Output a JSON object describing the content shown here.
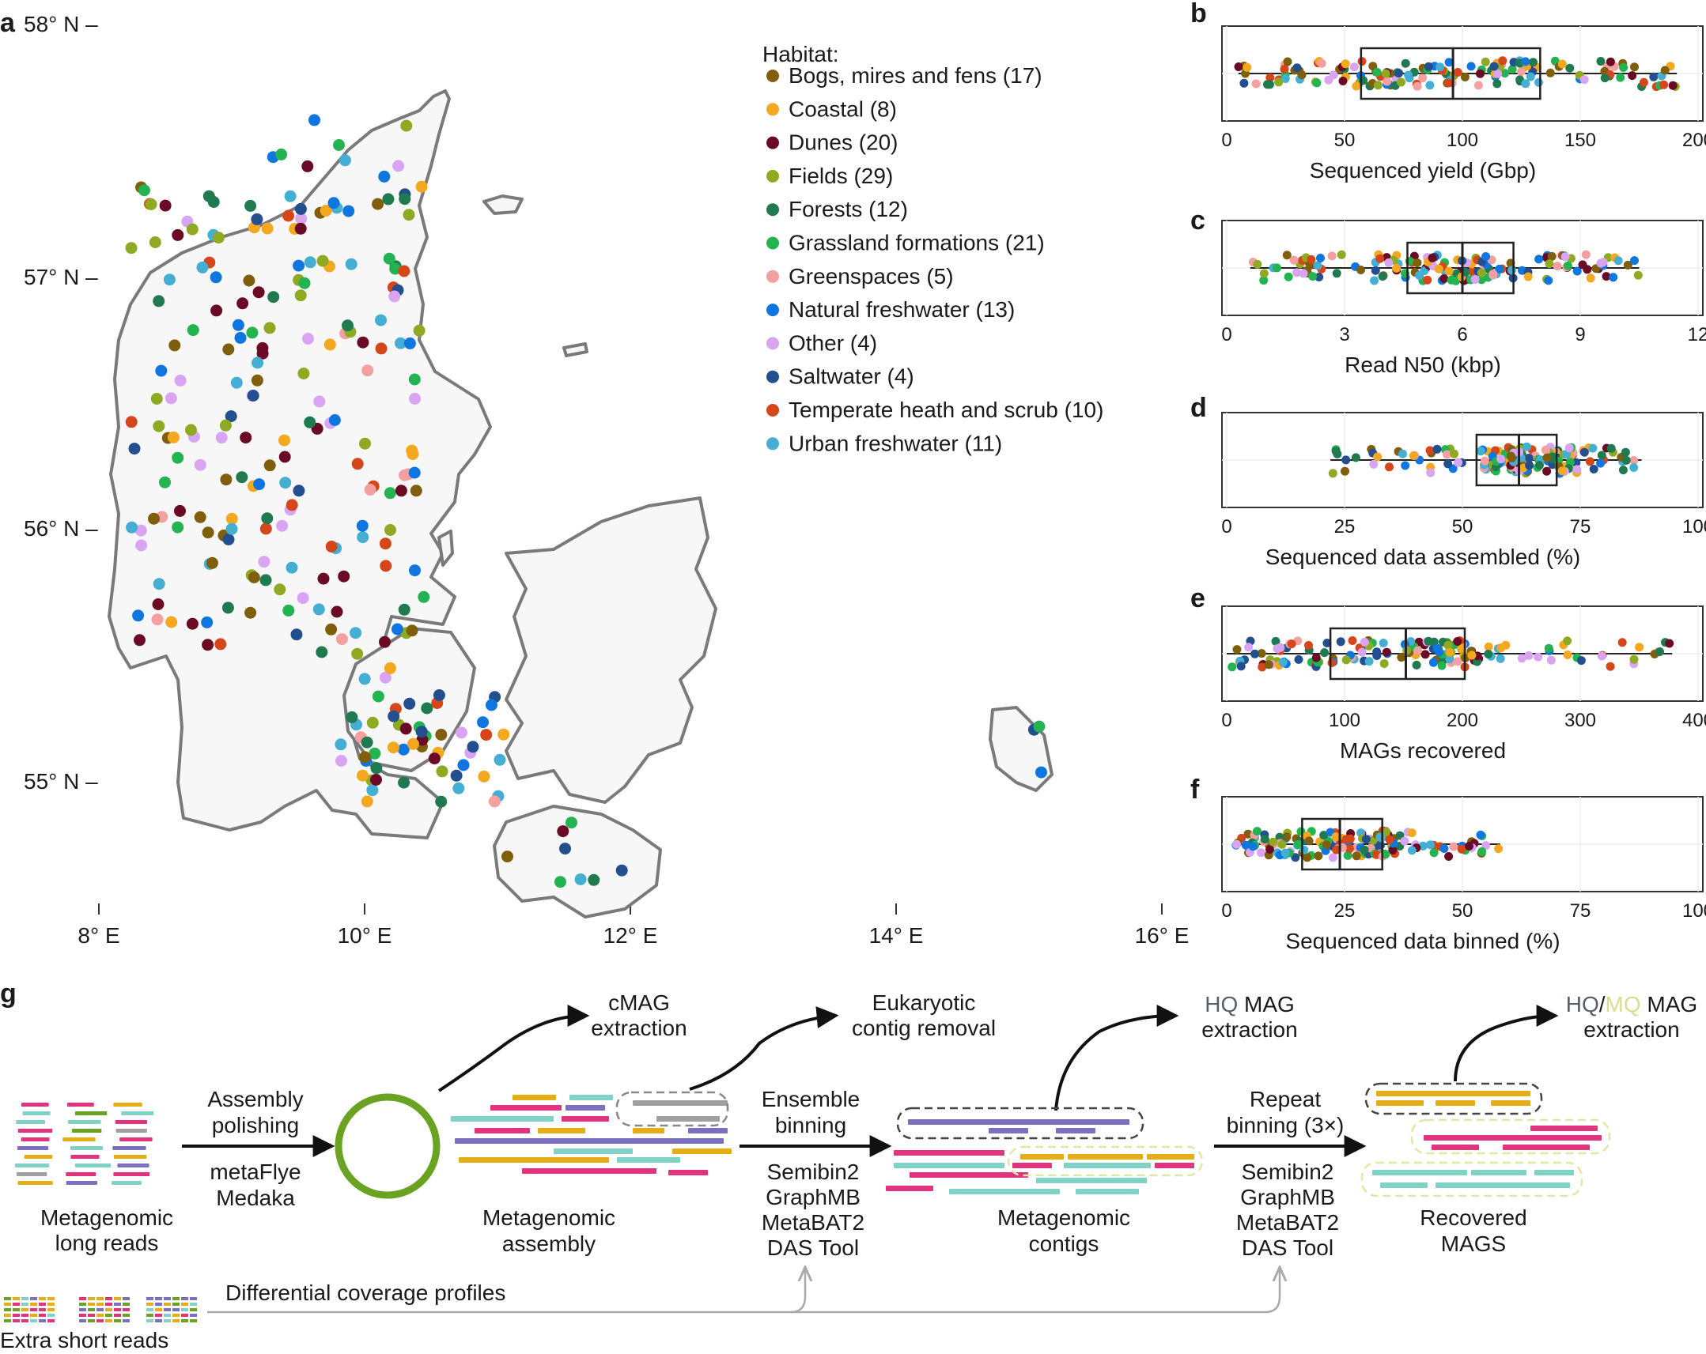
{
  "panel_labels": {
    "a": "a",
    "b": "b",
    "c": "c",
    "d": "d",
    "e": "e",
    "f": "f",
    "g": "g"
  },
  "map": {
    "lat_labels": [
      "58° N –",
      "57° N –",
      "56° N –",
      "55° N –"
    ],
    "lon_labels": [
      "8° E",
      "10° E",
      "12° E",
      "14° E",
      "16° E"
    ],
    "legend": {
      "title": "Habitat:",
      "items": [
        {
          "label": "Bogs, mires and fens (17)",
          "color": "#7f5f0c"
        },
        {
          "label": "Coastal (8)",
          "color": "#f4a81f"
        },
        {
          "label": "Dunes (20)",
          "color": "#6b0a25"
        },
        {
          "label": "Fields (29)",
          "color": "#8eaa22"
        },
        {
          "label": "Forests (12)",
          "color": "#1f7a4f"
        },
        {
          "label": "Grassland formations (21)",
          "color": "#23b350"
        },
        {
          "label": "Greenspaces (5)",
          "color": "#f4a0a0"
        },
        {
          "label": "Natural freshwater (13)",
          "color": "#0f76e0"
        },
        {
          "label": "Other (4)",
          "color": "#d9a5f2"
        },
        {
          "label": "Saltwater (4)",
          "color": "#244f8f"
        },
        {
          "label": "Temperate heath and scrub (10)",
          "color": "#d5461b"
        },
        {
          "label": "Urban freshwater (11)",
          "color": "#45aed3"
        }
      ]
    }
  },
  "chart_data": [
    {
      "type": "scatter",
      "panel": "b",
      "xlabel": "Sequenced yield (Gbp)",
      "xlim": [
        0,
        200
      ],
      "ticks": [
        "0",
        "50",
        "100",
        "150",
        "200"
      ],
      "box": {
        "min": 5,
        "q1": 57,
        "median": 96,
        "q3": 133,
        "max": 191
      }
    },
    {
      "type": "scatter",
      "panel": "c",
      "xlabel": "Read N50 (kbp)",
      "xlim": [
        0,
        12
      ],
      "ticks": [
        "0",
        "3",
        "6",
        "9",
        "12"
      ],
      "box": {
        "min": 0.6,
        "q1": 4.6,
        "median": 6.0,
        "q3": 7.3,
        "max": 10.5
      }
    },
    {
      "type": "scatter",
      "panel": "d",
      "xlabel": "Sequenced data assembled (%)",
      "xlim": [
        0,
        100
      ],
      "ticks": [
        "0",
        "25",
        "50",
        "75",
        "100"
      ],
      "box": {
        "min": 22,
        "q1": 53,
        "median": 62,
        "q3": 70,
        "max": 88
      }
    },
    {
      "type": "scatter",
      "panel": "e",
      "xlabel": "MAGs recovered",
      "xlim": [
        0,
        400
      ],
      "ticks": [
        "0",
        "100",
        "200",
        "300",
        "400"
      ],
      "box": {
        "min": 0,
        "q1": 88,
        "median": 152,
        "q3": 202,
        "max": 378
      }
    },
    {
      "type": "scatter",
      "panel": "f",
      "xlabel": "Sequenced data binned (%)",
      "xlim": [
        0,
        100
      ],
      "ticks": [
        "0",
        "25",
        "50",
        "75",
        "100"
      ],
      "box": {
        "min": 2,
        "q1": 16,
        "median": 24,
        "q3": 33,
        "max": 58
      }
    }
  ],
  "workflow": {
    "long_reads": "Metagenomic\nlong reads",
    "assembly_step": "Assembly\npolishing",
    "assembly_tools": "metaFlye\nMedaka",
    "cmag": "cMAG\nextraction",
    "eukaryotic": "Eukaryotic\ncontig removal",
    "assembly": "Metagenomic\nassembly",
    "binning_step": "Ensemble\nbinning",
    "binning_tools": "Semibin2\nGraphMB\nMetaBAT2\nDAS Tool",
    "hq_prefix": "HQ",
    "hq_suffix": " MAG\nextraction",
    "contigs": "Metagenomic\ncontigs",
    "repeat_step": "Repeat\nbinning (3×)",
    "repeat_tools": "Semibin2\nGraphMB\nMetaBAT2\nDAS Tool",
    "hqmq_hq": "HQ",
    "hqmq_slash": "/",
    "hqmq_mq": "MQ",
    "hqmq_suffix": " MAG\nextraction",
    "recovered": "Recovered\nMAGS",
    "coverage": "Differential coverage profiles",
    "short_reads": "Extra short reads"
  }
}
